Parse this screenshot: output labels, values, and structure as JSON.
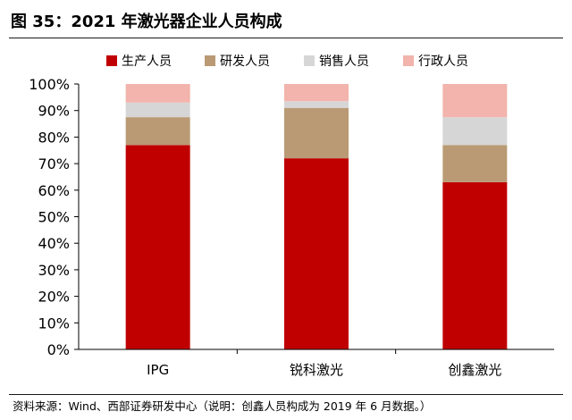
{
  "figure": {
    "title": "图 35：2021 年激光器企业人员构成",
    "source": "资料来源：Wind、西部证券研发中心（说明：创鑫人员构成为 2019 年 6 月数据。）"
  },
  "chart_data": {
    "type": "bar",
    "stacked": true,
    "percent": true,
    "categories": [
      "IPG",
      "锐科激光",
      "创鑫激光"
    ],
    "series": [
      {
        "name": "生产人员",
        "color": "#c00000",
        "values": [
          77,
          72,
          63
        ]
      },
      {
        "name": "研发人员",
        "color": "#b99a74",
        "values": [
          10.5,
          19,
          14
        ]
      },
      {
        "name": "销售人员",
        "color": "#d6d6d6",
        "values": [
          5.5,
          2.5,
          10.5
        ]
      },
      {
        "name": "行政人员",
        "color": "#f2b4ac",
        "values": [
          7,
          6.5,
          12.5
        ]
      }
    ],
    "ylim": [
      0,
      100
    ],
    "yticks": [
      "0%",
      "10%",
      "20%",
      "30%",
      "40%",
      "50%",
      "60%",
      "70%",
      "80%",
      "90%",
      "100%"
    ],
    "grid": false,
    "legend": "top"
  }
}
